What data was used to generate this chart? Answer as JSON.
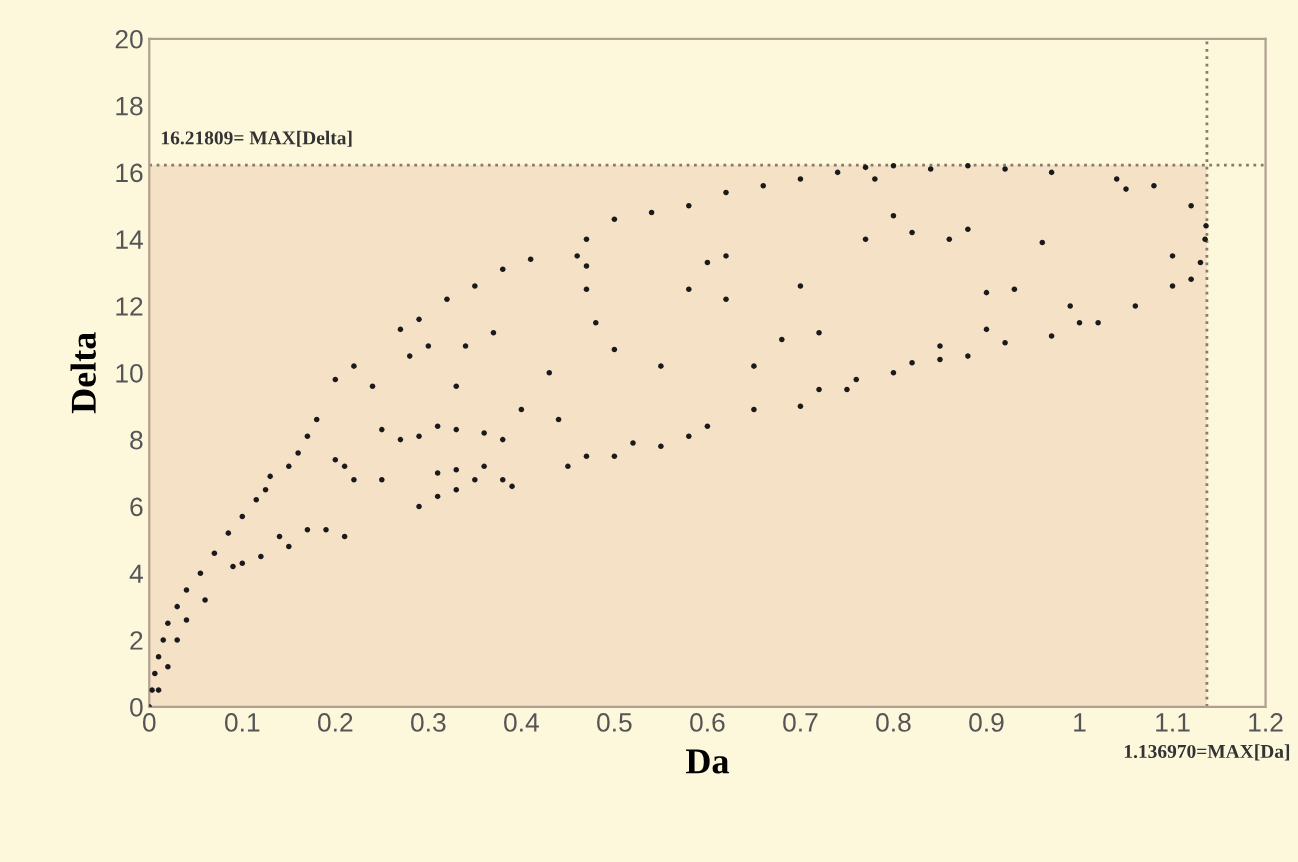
{
  "chart_data": {
    "type": "scatter",
    "xlabel": "Da",
    "ylabel": "Delta",
    "xlim": [
      0,
      1.2
    ],
    "xticks": [
      0,
      0.1,
      0.2,
      0.3,
      0.4,
      0.5,
      0.6,
      0.7,
      0.8,
      0.9,
      1,
      1.1,
      1.2
    ],
    "ylim": [
      0,
      20
    ],
    "yticks": [
      0,
      2,
      4,
      6,
      8,
      10,
      12,
      14,
      16,
      18,
      20
    ],
    "grid": false,
    "marker": "circle",
    "ref_lines": [
      {
        "axis": "y",
        "value": 16.21809,
        "label": "16.21809= MAX[Delta]",
        "line_style": "dotted",
        "color": "#8a7a6a"
      },
      {
        "axis": "x",
        "value": 1.13697,
        "label": "1.136970=MAX[Da]",
        "line_style": "dotted",
        "color": "#8a7a6a"
      }
    ],
    "bands": [
      {
        "axis": "y",
        "from": 0,
        "to": 16.21809,
        "color": "#f5e1c6"
      }
    ],
    "series": [
      {
        "color": "#1a1a1a",
        "x": [
          0,
          0.003,
          0.006,
          0.01,
          0.015,
          0.02,
          0.03,
          0.04,
          0.055,
          0.07,
          0.085,
          0.1,
          0.115,
          0.125,
          0.01,
          0.02,
          0.03,
          0.04,
          0.06,
          0.09,
          0.1,
          0.12,
          0.15,
          0.14,
          0.17,
          0.19,
          0.21,
          0.13,
          0.15,
          0.16,
          0.17,
          0.18,
          0.2,
          0.21,
          0.22,
          0.25,
          0.27,
          0.29,
          0.31,
          0.33,
          0.36,
          0.38,
          0.4,
          0.25,
          0.29,
          0.31,
          0.33,
          0.35,
          0.36,
          0.38,
          0.39,
          0.31,
          0.33,
          0.45,
          0.47,
          0.5,
          0.52,
          0.55,
          0.58,
          0.6,
          0.65,
          0.7,
          0.72,
          0.76,
          0.8,
          0.82,
          0.85,
          0.88,
          0.92,
          0.97,
          1.02,
          1.06,
          1.1,
          1.13,
          1.135,
          1.136,
          0.2,
          0.22,
          0.24,
          0.27,
          0.29,
          0.32,
          0.35,
          0.38,
          0.41,
          0.47,
          0.5,
          0.54,
          0.58,
          0.62,
          0.66,
          0.7,
          0.74,
          0.77,
          0.8,
          0.84,
          0.88,
          0.92,
          0.97,
          1.04,
          1.08,
          1.12,
          0.28,
          0.3,
          0.34,
          0.37,
          0.33,
          0.43,
          0.44,
          0.47,
          0.48,
          0.46,
          0.47,
          0.5,
          0.55,
          0.58,
          0.6,
          0.62,
          0.62,
          0.65,
          0.68,
          0.7,
          0.72,
          0.75,
          0.77,
          0.78,
          0.8,
          0.82,
          0.86,
          0.88,
          0.9,
          0.93,
          0.96,
          0.99,
          1.0,
          1.05,
          1.1,
          1.12,
          0.85,
          0.9
        ],
        "values": [
          0,
          0.5,
          1,
          1.5,
          2,
          2.5,
          3,
          3.5,
          4,
          4.6,
          5.2,
          5.7,
          6.2,
          6.5,
          0.5,
          1.2,
          2,
          2.6,
          3.2,
          4.2,
          4.3,
          4.5,
          4.8,
          5.1,
          5.3,
          5.3,
          5.1,
          6.9,
          7.2,
          7.6,
          8.1,
          8.6,
          7.4,
          7.2,
          6.8,
          8.3,
          8,
          8.1,
          8.4,
          8.3,
          8.2,
          8,
          8.9,
          6.8,
          6,
          6.3,
          6.5,
          6.8,
          7.2,
          6.8,
          6.6,
          7,
          7.1,
          7.2,
          7.5,
          7.5,
          7.9,
          7.8,
          8.1,
          8.4,
          8.9,
          9,
          9.5,
          9.8,
          10,
          10.3,
          10.4,
          10.5,
          10.9,
          11.1,
          11.5,
          12,
          12.6,
          13.3,
          14,
          14.4,
          9.8,
          10.2,
          9.6,
          11.3,
          11.6,
          12.2,
          12.6,
          13.1,
          13.4,
          14,
          14.6,
          14.8,
          15,
          15.4,
          15.6,
          15.8,
          16,
          16.15,
          16.2,
          16.1,
          16.2,
          16.1,
          16,
          15.8,
          15.6,
          15,
          10.5,
          10.8,
          10.8,
          11.2,
          9.6,
          10,
          8.6,
          12.5,
          11.5,
          13.5,
          13.2,
          10.7,
          10.2,
          12.5,
          13.3,
          13.5,
          12.2,
          10.2,
          11,
          12.6,
          11.2,
          9.5,
          14,
          15.8,
          14.7,
          14.2,
          14,
          14.3,
          12.4,
          12.5,
          13.9,
          12,
          11.5,
          15.5,
          13.5,
          12.8,
          10.8,
          11.3
        ]
      }
    ]
  }
}
